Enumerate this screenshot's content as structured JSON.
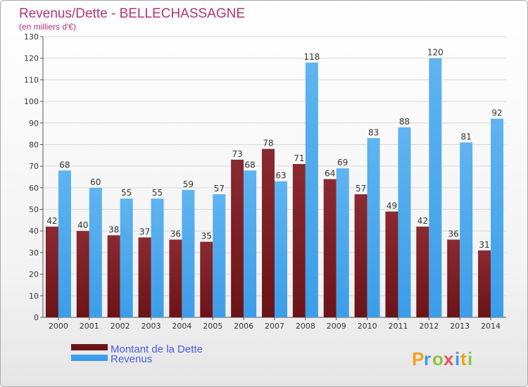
{
  "colors": {
    "debt": "#6b1418",
    "revenue": "#3c9de8",
    "title": "#b0347a",
    "legend_text": "#4a5be0",
    "logo": [
      "#f4a020",
      "#3c9de8",
      "#8cc63f",
      "#e8505b",
      "#3c9de8",
      "#f4a020",
      "#8cc63f"
    ]
  },
  "chart_data": {
    "type": "bar",
    "title": "Revenus/Dette - BELLECHASSAGNE",
    "subtitle": "(en milliers d'€)",
    "categories": [
      "2000",
      "2001",
      "2002",
      "2003",
      "2004",
      "2005",
      "2006",
      "2007",
      "2008",
      "2009",
      "2010",
      "2011",
      "2012",
      "2013",
      "2014"
    ],
    "series": [
      {
        "name": "Montant de la Dette",
        "values": [
          42,
          40,
          38,
          37,
          36,
          35,
          73,
          78,
          71,
          64,
          57,
          49,
          42,
          36,
          31
        ]
      },
      {
        "name": "Revenus",
        "values": [
          68,
          60,
          55,
          55,
          59,
          57,
          68,
          63,
          118,
          69,
          83,
          88,
          120,
          81,
          92
        ]
      }
    ],
    "ylim": [
      0,
      130
    ],
    "yticks": [
      0,
      10,
      20,
      30,
      40,
      50,
      60,
      70,
      80,
      90,
      100,
      110,
      120,
      130
    ],
    "grid": true,
    "legend_position": "bottom-left"
  },
  "logo": {
    "text": "Proxiti",
    "letters": [
      "P",
      "r",
      "o",
      "x",
      "i",
      "t",
      "i"
    ]
  }
}
